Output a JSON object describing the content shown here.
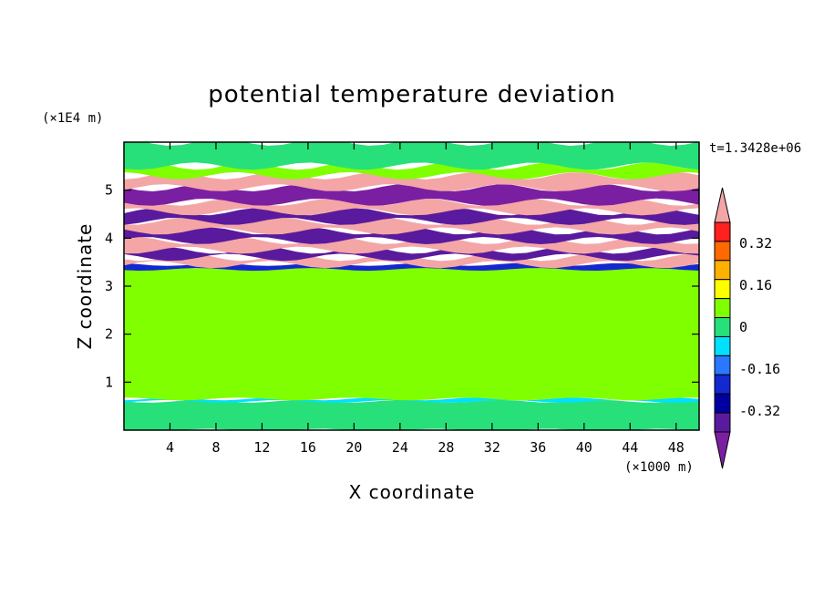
{
  "chart_data": {
    "type": "heatmap",
    "title": "potential temperature deviation",
    "xlabel": "X coordinate",
    "ylabel": "Z coordinate",
    "x_unit": "(×1000 m)",
    "y_unit": "(×1E4 m)",
    "time_label": "t=1.3428e+06",
    "xlim": [
      0,
      50
    ],
    "ylim": [
      0,
      6
    ],
    "x_ticks": [
      4,
      8,
      12,
      16,
      20,
      24,
      28,
      32,
      36,
      40,
      44,
      48
    ],
    "y_ticks": [
      1,
      2,
      3,
      4,
      5
    ],
    "colorbar": {
      "levels": [
        -0.48,
        -0.4,
        -0.32,
        -0.24,
        -0.16,
        -0.08,
        0,
        0.08,
        0.16,
        0.24,
        0.32,
        0.4,
        0.48
      ],
      "colors": [
        "#7b1fa2",
        "#5a1a9e",
        "#0000a0",
        "#1428d0",
        "#2a78ff",
        "#00e0ff",
        "#28e07a",
        "#80ff00",
        "#ffff00",
        "#ffb000",
        "#ff6a00",
        "#ff2020",
        "#f4a6a6"
      ],
      "labels": [
        "0.32",
        "0.16",
        "0",
        "-0.16",
        "-0.32"
      ],
      "label_values": [
        0.32,
        0.16,
        0,
        -0.16,
        -0.32
      ],
      "extend": "both"
    },
    "bands": [
      {
        "z0": 0.0,
        "z1": 0.6,
        "color": "#28e07a"
      },
      {
        "z0": 0.6,
        "z1": 0.65,
        "color": "#00e0ff"
      },
      {
        "z0": 0.65,
        "z1": 3.4,
        "color": "#80ff00"
      },
      {
        "z0": 3.35,
        "z1": 3.45,
        "color": "#1428d0"
      },
      {
        "z0": 3.45,
        "z1": 3.6,
        "color": "#f4a6a6"
      },
      {
        "z0": 3.6,
        "z1": 3.75,
        "color": "#5a1a9e"
      },
      {
        "z0": 3.75,
        "z1": 3.95,
        "color": "#f4a6a6"
      },
      {
        "z0": 3.95,
        "z1": 4.15,
        "color": "#5a1a9e"
      },
      {
        "z0": 4.15,
        "z1": 4.35,
        "color": "#f4a6a6"
      },
      {
        "z0": 4.35,
        "z1": 4.55,
        "color": "#5a1a9e"
      },
      {
        "z0": 4.55,
        "z1": 4.75,
        "color": "#f4a6a6"
      },
      {
        "z0": 4.75,
        "z1": 5.05,
        "color": "#7b1fa2"
      },
      {
        "z0": 5.05,
        "z1": 5.3,
        "color": "#f4a6a6"
      },
      {
        "z0": 5.3,
        "z1": 5.5,
        "color": "#80ff00"
      },
      {
        "z0": 5.5,
        "z1": 6.0,
        "color": "#28e07a"
      }
    ]
  }
}
